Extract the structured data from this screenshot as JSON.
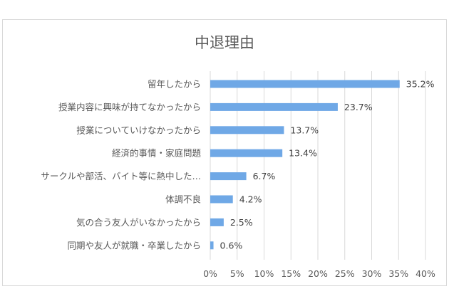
{
  "chart_data": {
    "type": "bar",
    "orientation": "horizontal",
    "title": "中退理由",
    "categories": [
      "留年したから",
      "授業内容に興味が持てなかったから",
      "授業についていけなかったから",
      "経済的事情・家庭問題",
      "サークルや部活、バイト等に熱中した…",
      "体調不良",
      "気の合う友人がいなかったから",
      "同期や友人が就職・卒業したから"
    ],
    "values": [
      35.2,
      23.7,
      13.7,
      13.4,
      6.7,
      4.2,
      2.5,
      0.6
    ],
    "value_labels": [
      "35.2%",
      "23.7%",
      "13.7%",
      "13.4%",
      "6.7%",
      "4.2%",
      "2.5%",
      "0.6%"
    ],
    "xlim": [
      0,
      40
    ],
    "xticks": [
      0,
      5,
      10,
      15,
      20,
      25,
      30,
      35,
      40
    ],
    "xtick_labels": [
      "0%",
      "5%",
      "10%",
      "15%",
      "20%",
      "25%",
      "30%",
      "35%",
      "40%"
    ],
    "xlabel": "",
    "ylabel": "",
    "grid": true,
    "legend": "none",
    "bar_color": "#6fa8e6",
    "grid_color": "#d9d9d9"
  }
}
